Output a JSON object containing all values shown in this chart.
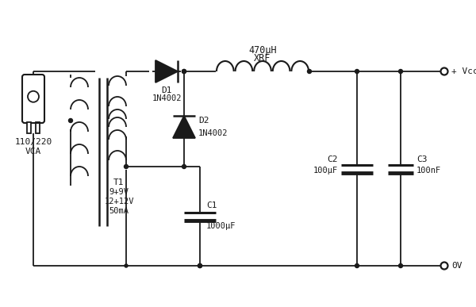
{
  "bg_color": "#ffffff",
  "line_color": "#1a1a1a",
  "line_width": 1.3,
  "fig_width": 6.0,
  "fig_height": 3.87,
  "dpi": 100,
  "labels": {
    "inductor_top": "470μH",
    "inductor_top2": "XRF",
    "d1_name": "D1",
    "d1_val": "1N4002",
    "d2_name": "D2",
    "d2_val": "1N4002",
    "c1_name": "C1",
    "c1_val": "1000μF",
    "c2_name": "C2",
    "c2_val": "100μF",
    "c3_name": "C3",
    "c3_val": "100nF",
    "t1_name": "T1",
    "t1_val1": "9+9V",
    "t1_val2": "12+12V",
    "t1_val3": "50mA",
    "plug_val1": "110/220",
    "plug_val2": "VCA",
    "vcc_label": "+ Vcc",
    "gnd_label": "0V"
  }
}
